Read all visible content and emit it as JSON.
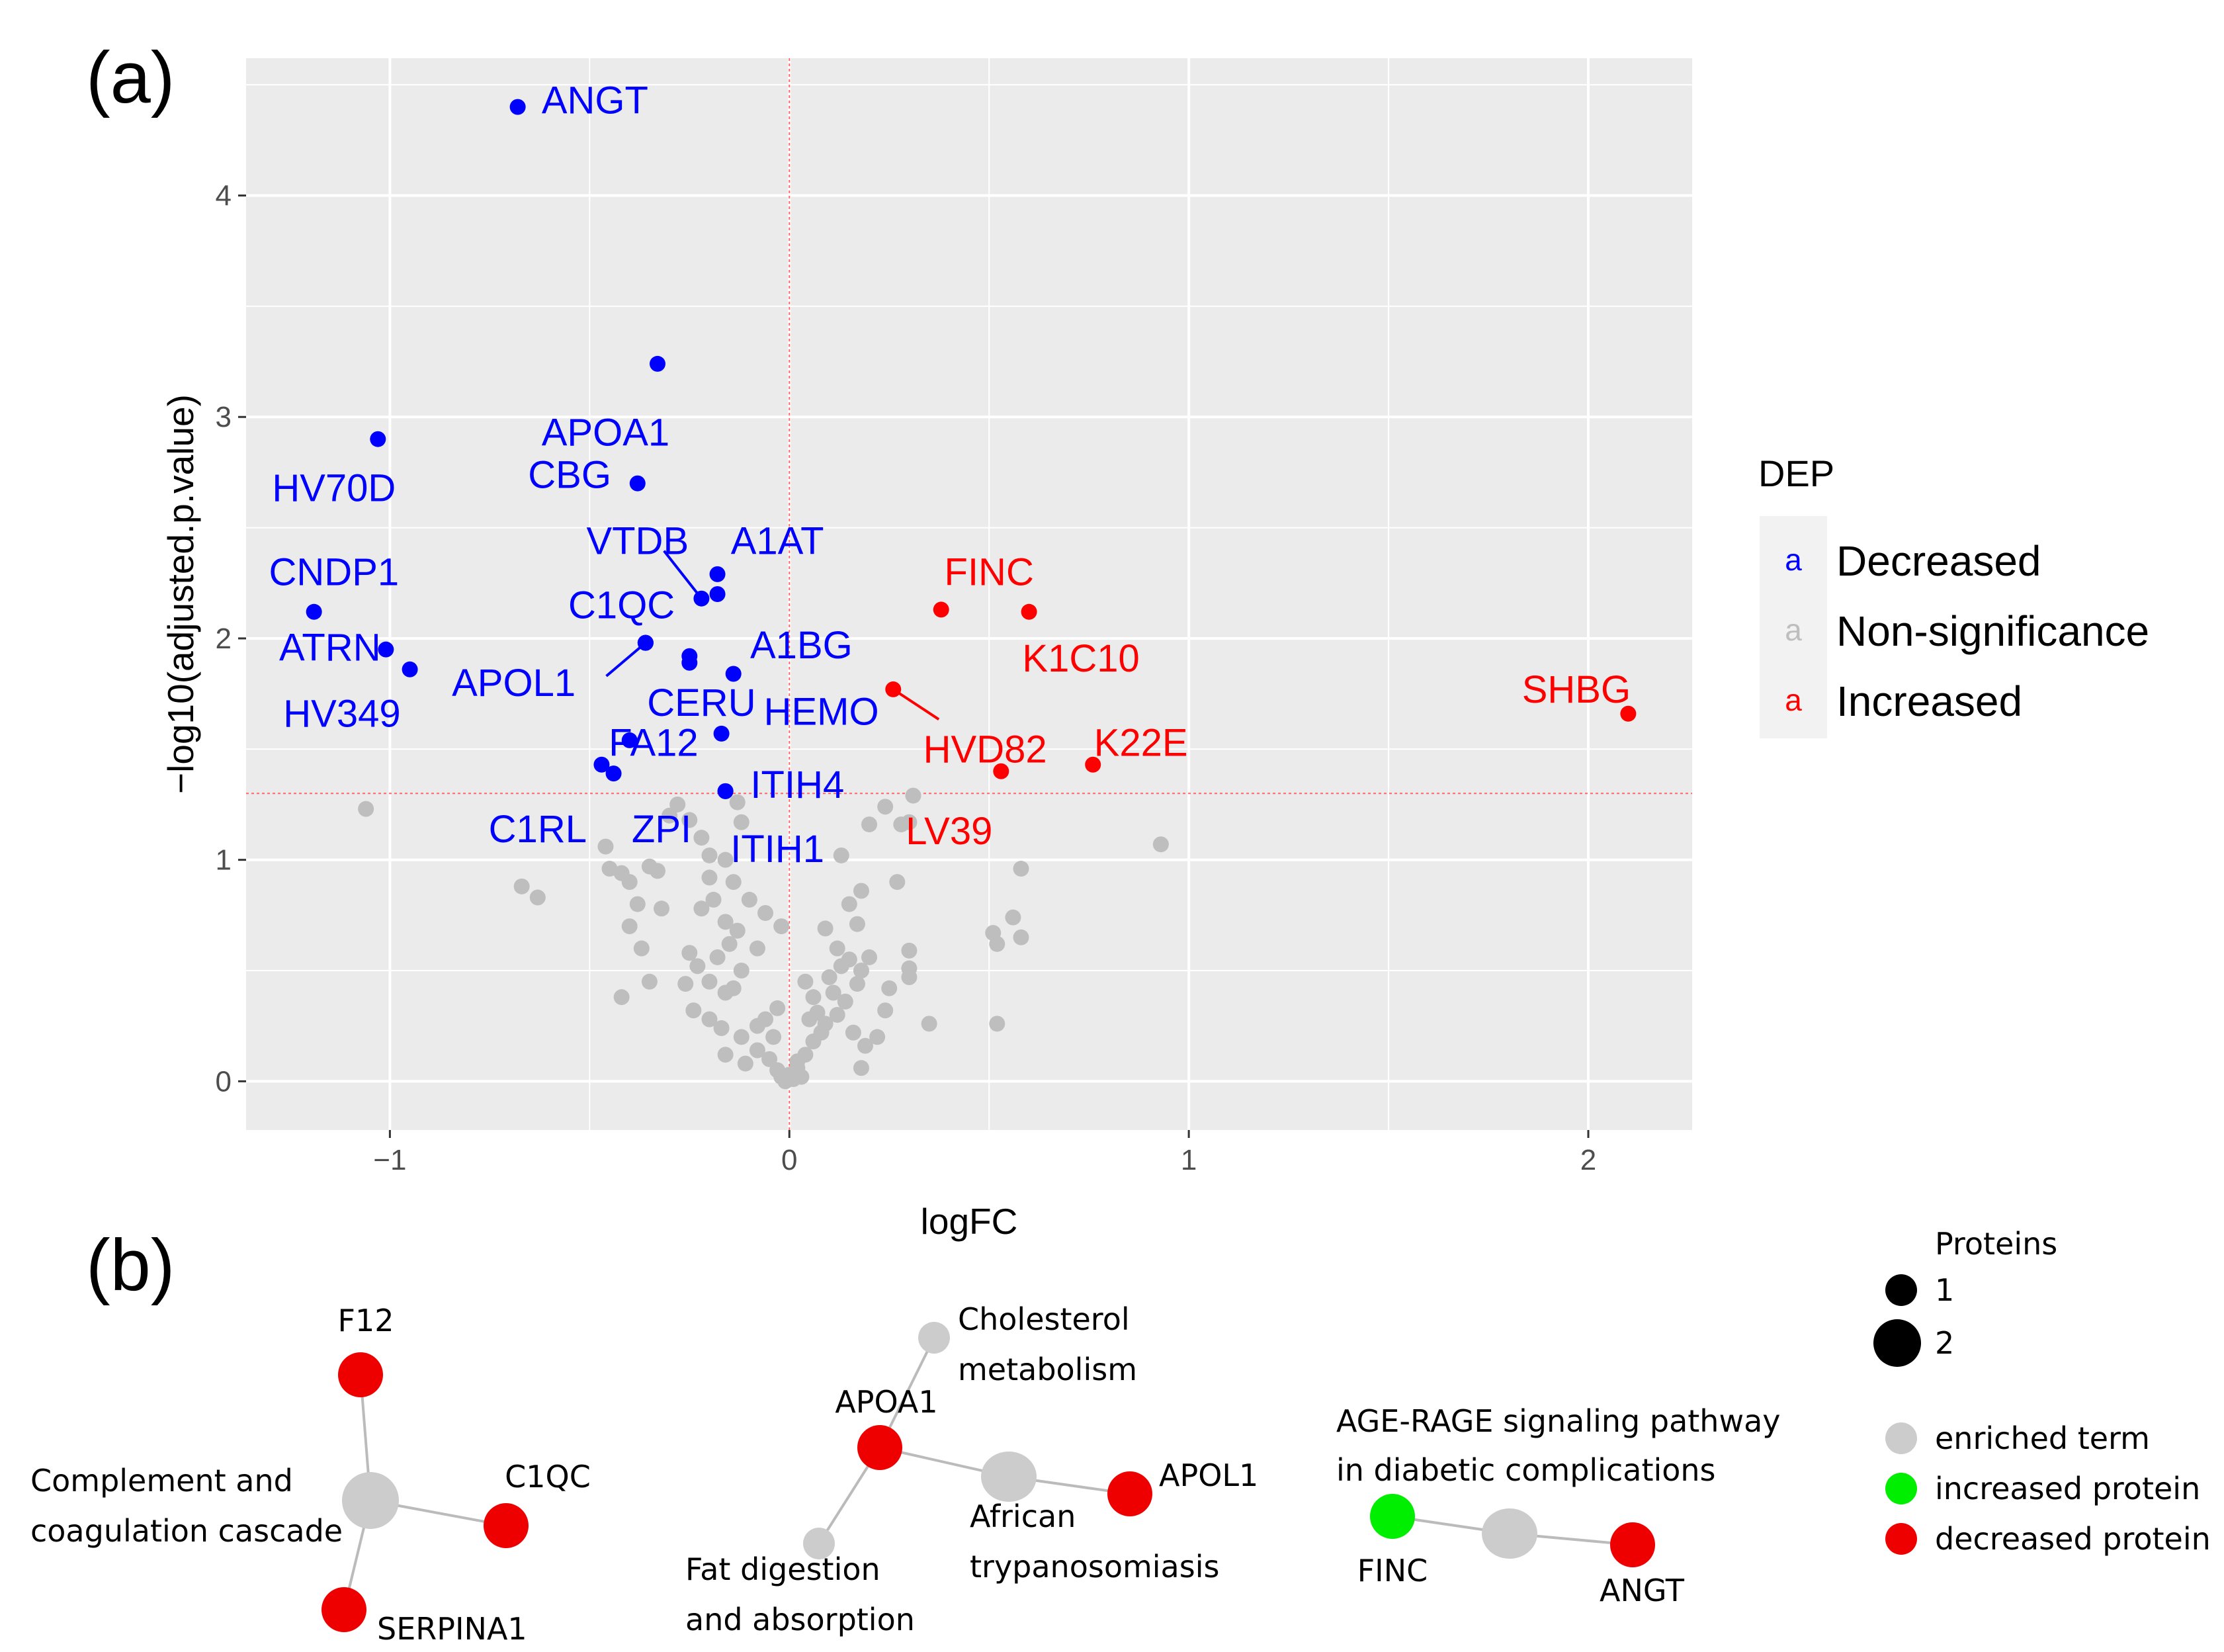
{
  "panel_a_label": "(a)",
  "panel_b_label": "(b)",
  "colors": {
    "panel_bg": "#ebebeb",
    "grid": "#ffffff",
    "decreased": "#0000ff",
    "nonsig": "#bebebe",
    "increased": "#ff0000",
    "threshold": "#ff6666",
    "net_term": "#cccccc",
    "net_increased": "#00ee00",
    "net_decreased": "#ee0000",
    "net_edge": "#bbbbbb"
  },
  "chart_data": {
    "type": "scatter",
    "title": "",
    "xlabel": "logFC",
    "ylabel": "−log10(adjusted.p.value)",
    "xlim": [
      -1.36,
      2.26
    ],
    "ylim": [
      -0.22,
      4.62
    ],
    "xticks": [
      -1,
      0,
      1,
      2
    ],
    "xtick_labels": [
      "−1",
      "0",
      "1",
      "2"
    ],
    "yticks": [
      0,
      1,
      2,
      3,
      4
    ],
    "ytick_labels": [
      "0",
      "1",
      "2",
      "3",
      "4"
    ],
    "threshold_y": 1.3,
    "threshold_x": 0,
    "grid": true,
    "legend": {
      "title": "DEP",
      "position": "right",
      "key_glyph": "a",
      "entries": [
        {
          "label": "Decreased",
          "group": "decreased"
        },
        {
          "label": "Non-significance",
          "group": "nonsig"
        },
        {
          "label": "Increased",
          "group": "increased"
        }
      ]
    },
    "labeled_points": [
      {
        "name": "ANGT",
        "x": -0.68,
        "y": 4.4,
        "group": "decreased",
        "lx": -0.62,
        "ly": 4.43,
        "anchor": "start"
      },
      {
        "name": "APOA1",
        "x": -0.33,
        "y": 3.24,
        "group": "decreased",
        "lx": -0.46,
        "ly": 2.93,
        "anchor": "middle"
      },
      {
        "name": "HV70D",
        "x": -1.03,
        "y": 2.9,
        "group": "decreased",
        "lx": -1.14,
        "ly": 2.68,
        "anchor": "middle"
      },
      {
        "name": "CBG",
        "x": -0.38,
        "y": 2.7,
        "group": "decreased",
        "lx": -0.55,
        "ly": 2.74,
        "anchor": "middle"
      },
      {
        "name": "CNDP1",
        "x": -1.19,
        "y": 2.12,
        "group": "decreased",
        "lx": -1.14,
        "ly": 2.3,
        "anchor": "middle"
      },
      {
        "name": "ATRN",
        "x": -1.01,
        "y": 1.95,
        "group": "decreased",
        "lx": -1.15,
        "ly": 1.96,
        "anchor": "middle"
      },
      {
        "name": "HV349",
        "x": -0.95,
        "y": 1.86,
        "group": "decreased",
        "lx": -1.12,
        "ly": 1.66,
        "anchor": "middle"
      },
      {
        "name": "VTDB",
        "x": -0.22,
        "y": 2.18,
        "group": "decreased",
        "lx": -0.38,
        "ly": 2.44,
        "anchor": "middle",
        "lead": true
      },
      {
        "name": "A1AT",
        "x": -0.18,
        "y": 2.29,
        "group": "decreased",
        "lx": -0.03,
        "ly": 2.44,
        "anchor": "middle"
      },
      {
        "name": "C1QC",
        "x": -0.36,
        "y": 1.98,
        "group": "decreased",
        "lx": -0.42,
        "ly": 2.15,
        "anchor": "middle"
      },
      {
        "name": "A1BG",
        "x": -0.14,
        "y": 1.84,
        "group": "decreased",
        "lx": 0.03,
        "ly": 1.97,
        "anchor": "middle"
      },
      {
        "name": "APOL1",
        "x": -0.36,
        "y": 1.98,
        "group": "decreased",
        "lx": -0.69,
        "ly": 1.8,
        "anchor": "middle",
        "lead": true
      },
      {
        "name": "CERU",
        "x": -0.25,
        "y": 1.92,
        "group": "decreased",
        "lx": -0.22,
        "ly": 1.71,
        "anchor": "middle"
      },
      {
        "name": "HEMO",
        "x": -0.17,
        "y": 1.57,
        "group": "decreased",
        "lx": 0.08,
        "ly": 1.67,
        "anchor": "middle"
      },
      {
        "name": "FA12",
        "x": -0.4,
        "y": 1.54,
        "group": "decreased",
        "lx": -0.34,
        "ly": 1.53,
        "anchor": "middle"
      },
      {
        "name": "ITIH4",
        "x": -0.16,
        "y": 1.31,
        "group": "decreased",
        "lx": 0.02,
        "ly": 1.34,
        "anchor": "middle"
      },
      {
        "name": "C1RL",
        "x": -0.47,
        "y": 1.43,
        "group": "decreased",
        "lx": -0.63,
        "ly": 1.14,
        "anchor": "middle"
      },
      {
        "name": "ZPI",
        "x": -0.44,
        "y": 1.39,
        "group": "decreased",
        "lx": -0.32,
        "ly": 1.14,
        "anchor": "middle"
      },
      {
        "name": "ITIH1",
        "x": -0.16,
        "y": 1.31,
        "group": "decreased",
        "lx": -0.03,
        "ly": 1.05,
        "anchor": "middle"
      },
      {
        "name": "FINC",
        "x": 0.38,
        "y": 2.13,
        "group": "increased",
        "lx": 0.5,
        "ly": 2.3,
        "anchor": "middle"
      },
      {
        "name": "K1C10",
        "x": 0.6,
        "y": 2.12,
        "group": "increased",
        "lx": 0.73,
        "ly": 1.91,
        "anchor": "middle"
      },
      {
        "name": "SHBG",
        "x": 2.1,
        "y": 1.66,
        "group": "increased",
        "lx": 1.97,
        "ly": 1.77,
        "anchor": "middle"
      },
      {
        "name": "HVD82",
        "x": 0.26,
        "y": 1.77,
        "group": "increased",
        "lx": 0.49,
        "ly": 1.5,
        "anchor": "middle",
        "lead": true
      },
      {
        "name": "K22E",
        "x": 0.76,
        "y": 1.43,
        "group": "increased",
        "lx": 0.88,
        "ly": 1.53,
        "anchor": "middle"
      },
      {
        "name": "LV39",
        "x": 0.53,
        "y": 1.4,
        "group": "increased",
        "lx": 0.4,
        "ly": 1.13,
        "anchor": "middle"
      }
    ],
    "unlabeled_significant_points": [
      {
        "x": -0.36,
        "y": 1.98,
        "group": "decreased"
      },
      {
        "x": -0.18,
        "y": 2.2,
        "group": "decreased"
      },
      {
        "x": -0.25,
        "y": 1.89,
        "group": "decreased"
      }
    ],
    "nonsig_points": [
      [
        -1.06,
        1.23
      ],
      [
        -0.67,
        0.88
      ],
      [
        -0.63,
        0.83
      ],
      [
        -0.46,
        1.06
      ],
      [
        -0.45,
        0.96
      ],
      [
        -0.42,
        0.94
      ],
      [
        -0.4,
        0.9
      ],
      [
        -0.35,
        0.97
      ],
      [
        -0.33,
        0.95
      ],
      [
        -0.32,
        0.78
      ],
      [
        -0.38,
        0.8
      ],
      [
        -0.4,
        0.7
      ],
      [
        -0.37,
        0.6
      ],
      [
        -0.35,
        0.45
      ],
      [
        -0.42,
        0.38
      ],
      [
        -0.28,
        1.25
      ],
      [
        -0.25,
        1.18
      ],
      [
        -0.22,
        1.1
      ],
      [
        -0.2,
        1.02
      ],
      [
        -0.2,
        0.92
      ],
      [
        -0.16,
        1.0
      ],
      [
        -0.14,
        0.9
      ],
      [
        -0.1,
        0.82
      ],
      [
        -0.13,
        1.26
      ],
      [
        -0.19,
        0.82
      ],
      [
        -0.22,
        0.78
      ],
      [
        -0.16,
        0.72
      ],
      [
        -0.13,
        0.68
      ],
      [
        -0.25,
        0.58
      ],
      [
        -0.23,
        0.52
      ],
      [
        -0.18,
        0.56
      ],
      [
        -0.15,
        0.62
      ],
      [
        -0.2,
        0.45
      ],
      [
        -0.16,
        0.4
      ],
      [
        -0.14,
        0.42
      ],
      [
        -0.12,
        0.5
      ],
      [
        -0.26,
        0.44
      ],
      [
        -0.24,
        0.32
      ],
      [
        -0.2,
        0.28
      ],
      [
        -0.17,
        0.24
      ],
      [
        -0.12,
        0.2
      ],
      [
        -0.08,
        0.25
      ],
      [
        -0.16,
        0.12
      ],
      [
        -0.11,
        0.08
      ],
      [
        -0.08,
        0.14
      ],
      [
        -0.05,
        0.1
      ],
      [
        -0.03,
        0.05
      ],
      [
        -0.02,
        0.02
      ],
      [
        -0.01,
        0.0
      ],
      [
        0.0,
        0.03
      ],
      [
        0.01,
        0.01
      ],
      [
        0.02,
        0.06
      ],
      [
        0.03,
        0.02
      ],
      [
        -0.04,
        0.2
      ],
      [
        -0.06,
        0.28
      ],
      [
        -0.03,
        0.33
      ],
      [
        0.02,
        0.09
      ],
      [
        0.04,
        0.12
      ],
      [
        0.06,
        0.18
      ],
      [
        0.05,
        0.28
      ],
      [
        0.06,
        0.38
      ],
      [
        0.07,
        0.31
      ],
      [
        0.09,
        0.26
      ],
      [
        0.08,
        0.22
      ],
      [
        0.11,
        0.4
      ],
      [
        0.1,
        0.47
      ],
      [
        0.13,
        0.52
      ],
      [
        0.12,
        0.6
      ],
      [
        0.09,
        0.69
      ],
      [
        0.15,
        0.55
      ],
      [
        0.17,
        0.44
      ],
      [
        0.18,
        0.5
      ],
      [
        0.14,
        0.36
      ],
      [
        0.12,
        0.3
      ],
      [
        0.16,
        0.22
      ],
      [
        0.19,
        0.16
      ],
      [
        0.18,
        0.06
      ],
      [
        0.22,
        0.2
      ],
      [
        0.24,
        0.32
      ],
      [
        0.25,
        0.42
      ],
      [
        0.2,
        0.56
      ],
      [
        0.17,
        0.71
      ],
      [
        0.15,
        0.8
      ],
      [
        0.18,
        0.86
      ],
      [
        0.13,
        1.02
      ],
      [
        0.2,
        1.16
      ],
      [
        0.24,
        1.24
      ],
      [
        0.28,
        1.16
      ],
      [
        0.31,
        1.29
      ],
      [
        0.3,
        1.17
      ],
      [
        0.3,
        0.59
      ],
      [
        0.3,
        0.51
      ],
      [
        0.3,
        0.47
      ],
      [
        0.35,
        0.26
      ],
      [
        0.52,
        0.26
      ],
      [
        0.51,
        0.67
      ],
      [
        0.52,
        0.62
      ],
      [
        0.56,
        0.74
      ],
      [
        0.58,
        0.65
      ],
      [
        0.58,
        0.96
      ],
      [
        0.93,
        1.07
      ],
      [
        -0.06,
        0.76
      ],
      [
        -0.02,
        0.7
      ],
      [
        -0.08,
        0.6
      ],
      [
        0.04,
        0.45
      ],
      [
        -0.3,
        1.2
      ],
      [
        -0.12,
        1.17
      ],
      [
        0.27,
        0.9
      ]
    ]
  },
  "network": {
    "legend_title": "Proteins",
    "size_legend": [
      "1",
      "2"
    ],
    "color_legend": [
      "enriched term",
      "increased protein",
      "decreased protein"
    ],
    "clusters": [
      {
        "term_label_lines": [
          "Complement and",
          "coagulation cascade"
        ],
        "proteins": [
          {
            "name": "F12",
            "kind": "decreased"
          },
          {
            "name": "C1QC",
            "kind": "decreased"
          },
          {
            "name": "SERPINA1",
            "kind": "decreased"
          }
        ]
      },
      {
        "term_label_lines": [
          "African",
          "trypanosomiasis"
        ],
        "extra_terms": [
          {
            "label_lines": [
              "Cholesterol",
              "metabolism"
            ]
          },
          {
            "label_lines": [
              "Fat digestion",
              "and absorption"
            ]
          }
        ],
        "proteins": [
          {
            "name": "APOA1",
            "kind": "decreased"
          },
          {
            "name": "APOL1",
            "kind": "decreased"
          }
        ]
      },
      {
        "term_label_lines": [
          "AGE-RAGE signaling pathway",
          "in diabetic complications"
        ],
        "proteins": [
          {
            "name": "FINC",
            "kind": "increased"
          },
          {
            "name": "ANGT",
            "kind": "decreased"
          }
        ]
      }
    ]
  }
}
